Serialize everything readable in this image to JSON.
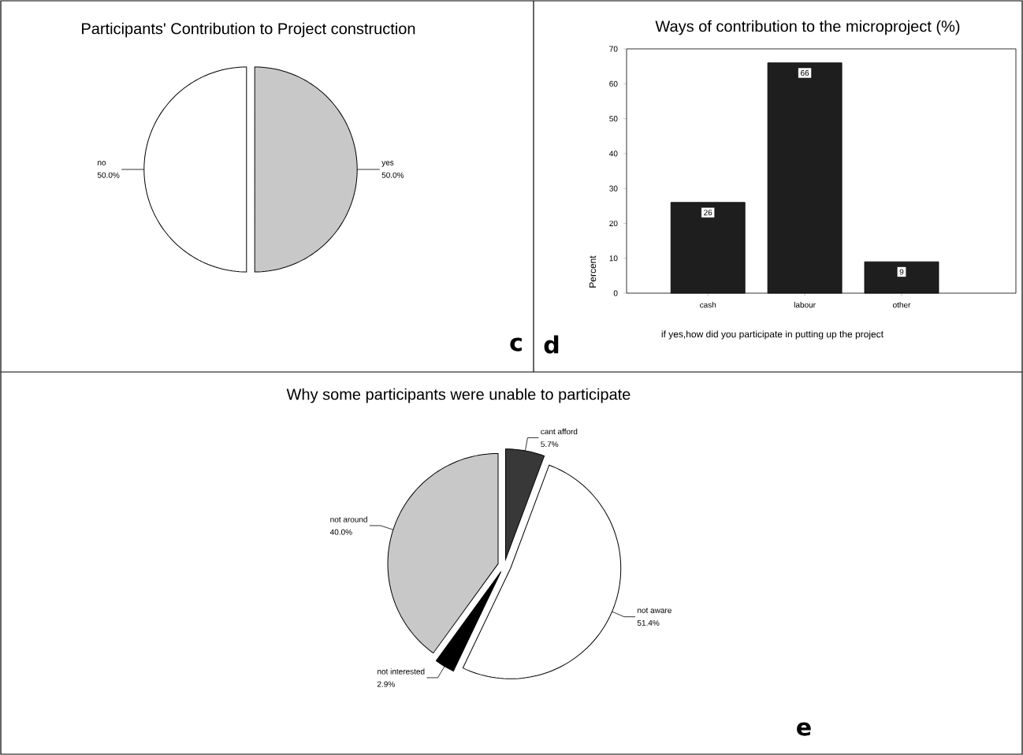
{
  "chart_data": [
    {
      "type": "pie",
      "title": "Participants' Contribution to Project construction",
      "categories": [
        "yes",
        "no"
      ],
      "values": [
        50,
        50
      ],
      "value_labels": [
        "50.0%",
        "50.0%"
      ],
      "colors": [
        "#c8c8c8",
        "#ffffff"
      ],
      "annotations": [
        "c"
      ]
    },
    {
      "type": "bar",
      "title": "Ways of contribution to the microproject (%)",
      "xlabel": "if yes,how did you participate in putting up the project",
      "ylabel": "Percent",
      "categories": [
        "cash",
        "labour",
        "other"
      ],
      "values": [
        26,
        66,
        9
      ],
      "color": "#1e1e1e",
      "data_labels": true,
      "ylim": [
        0,
        70
      ],
      "yticks": [
        0,
        10,
        20,
        30,
        40,
        50,
        60,
        70
      ],
      "annotations": [
        "d"
      ]
    },
    {
      "type": "pie",
      "title": "Why some participants were unable to participate",
      "categories": [
        "cant afford",
        "not aware",
        "not interested",
        "not around"
      ],
      "values": [
        5.7,
        51.4,
        2.9,
        40.0
      ],
      "value_labels": [
        "5.7%",
        "51.4%",
        "2.9%",
        "40.0%"
      ],
      "colors": [
        "#383838",
        "#ffffff",
        "#000000",
        "#c8c8c8"
      ],
      "annotations": [
        "e"
      ]
    }
  ]
}
